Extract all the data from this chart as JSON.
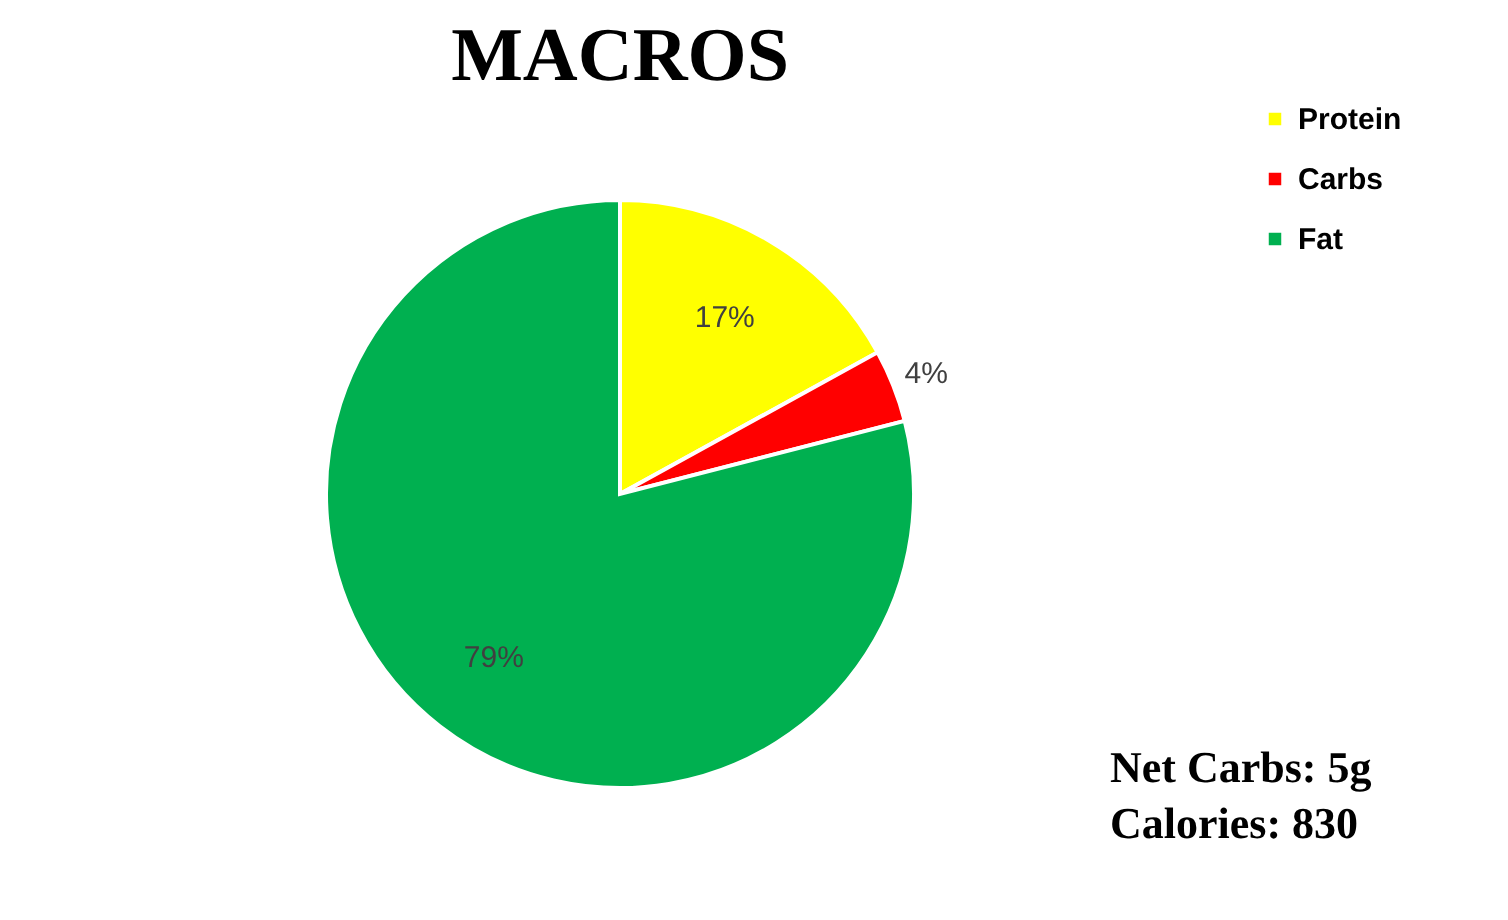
{
  "chart_data": {
    "type": "pie",
    "title": "MACROS",
    "categories": [
      "Protein",
      "Carbs",
      "Fat"
    ],
    "values": [
      17,
      4,
      79
    ],
    "colors": [
      "#ffff00",
      "#ff0000",
      "#00b050"
    ],
    "value_labels": [
      "17%",
      "4%",
      "79%"
    ],
    "legend": "right",
    "annotations": [
      "Net Carbs: 5g",
      "Calories: 830"
    ]
  }
}
